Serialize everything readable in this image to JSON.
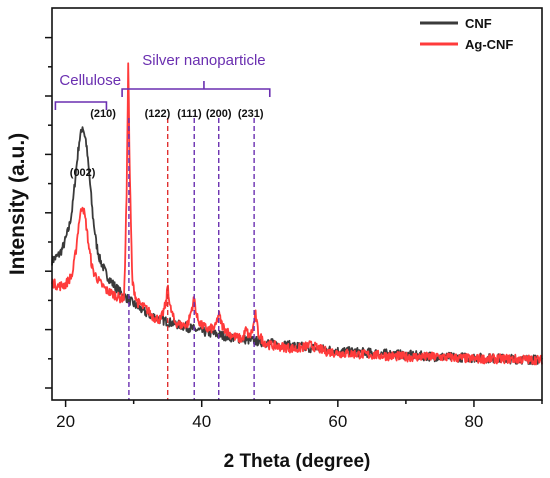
{
  "chart_data": {
    "type": "line",
    "xlabel": "2 Theta (degree)",
    "ylabel": "Intensity (a.u.)",
    "xlim": [
      18,
      90
    ],
    "ylim": [
      0,
      100
    ],
    "x_ticks": [
      20,
      40,
      60,
      80
    ],
    "y_ticks_shown": false,
    "grid": false,
    "legend": {
      "placement": "top-right"
    },
    "series": [
      {
        "name": "CNF",
        "color": "#3a3a3a",
        "x": [
          18,
          19,
          19.5,
          20,
          20.5,
          21,
          21.5,
          22,
          22.5,
          23,
          23.5,
          24,
          24.5,
          25,
          26,
          27,
          28,
          30,
          32,
          34,
          36,
          38,
          40,
          45,
          50,
          55,
          60,
          65,
          70,
          75,
          80,
          85,
          90
        ],
        "values": [
          35.5,
          37,
          38.5,
          41,
          44,
          49,
          58,
          66,
          70,
          66,
          57,
          47,
          40,
          36,
          32,
          29.5,
          27.5,
          24.5,
          22,
          20.5,
          19.5,
          18.5,
          17.5,
          15.8,
          14.5,
          13.5,
          12.5,
          12,
          11.5,
          11,
          10.8,
          10.5,
          10.2
        ]
      },
      {
        "name": "Ag-CNF",
        "color": "#ff3b3b",
        "x": [
          18,
          19,
          20,
          21,
          21.5,
          22,
          22.5,
          23,
          23.5,
          24,
          25,
          26,
          27,
          28,
          28.6,
          29,
          29.2,
          29.4,
          29.8,
          30.5,
          32,
          33,
          34,
          34.8,
          35,
          35.3,
          36,
          37,
          38,
          38.5,
          38.9,
          39.3,
          40,
          41,
          42,
          42.5,
          43,
          44,
          45,
          46,
          46.5,
          47,
          47.5,
          47.9,
          48.3,
          49,
          50,
          52,
          54,
          56,
          58,
          60,
          65,
          70,
          75,
          80,
          85,
          90
        ],
        "values": [
          30,
          29,
          29.5,
          32,
          38,
          46,
          50,
          45,
          38,
          33,
          30,
          28,
          27,
          26,
          26,
          55,
          87,
          60,
          30,
          25,
          23,
          21,
          20.5,
          25,
          30,
          24,
          20,
          19,
          19.5,
          23,
          26,
          21,
          19,
          18,
          18.5,
          22,
          19,
          17,
          16,
          15.5,
          18,
          16,
          18,
          22,
          17,
          15,
          14,
          13.5,
          13,
          14,
          12.5,
          12,
          11.5,
          11,
          11,
          10.5,
          10.5,
          10.2
        ]
      }
    ],
    "vlines": [
      {
        "x": 29.3,
        "color": "#6a2fb0"
      },
      {
        "x": 35.0,
        "color": "#e03030"
      },
      {
        "x": 38.9,
        "color": "#6a2fb0"
      },
      {
        "x": 42.5,
        "color": "#6a2fb0"
      },
      {
        "x": 47.7,
        "color": "#6a2fb0"
      }
    ],
    "annotations": {
      "peak_002": {
        "label": "(002)",
        "x": 22.5
      },
      "peaks": [
        {
          "label": "(210)",
          "x": 25.5
        },
        {
          "label": "(122)",
          "x": 33.5
        },
        {
          "label": "(111)",
          "x": 38.2
        },
        {
          "label": "(200)",
          "x": 42.5
        },
        {
          "label": "(231)",
          "x": 47.2
        }
      ],
      "groups": [
        {
          "label": "Cellulose",
          "x_start": 18.5,
          "x_end": 26,
          "color": "#6a2fb0"
        },
        {
          "label": "Silver nanoparticle",
          "x_start": 28.3,
          "x_end": 50,
          "color": "#6a2fb0"
        }
      ]
    }
  }
}
